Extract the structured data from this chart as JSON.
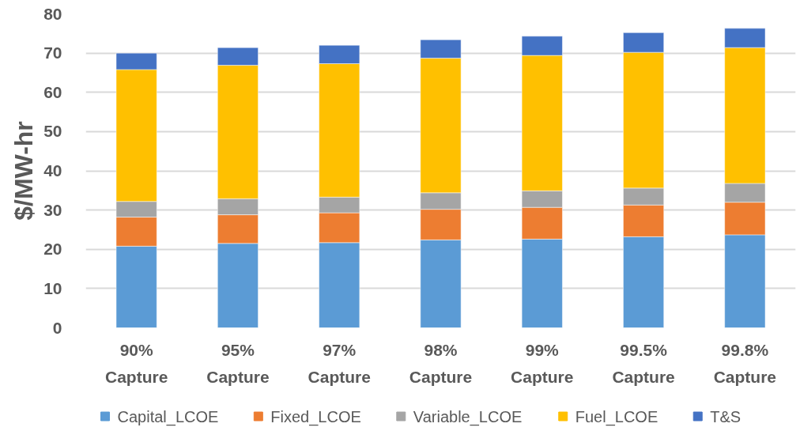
{
  "chart_data": {
    "type": "bar",
    "stacked": true,
    "ylabel": "$/MW-hr",
    "categories": [
      "90% Capture",
      "95% Capture",
      "97% Capture",
      "98% Capture",
      "99% Capture",
      "99.5% Capture",
      "99.8% Capture"
    ],
    "series": [
      {
        "name": "Capital_LCOE",
        "color": "#5b9bd5",
        "values": [
          20.8,
          21.5,
          21.7,
          22.4,
          22.6,
          23.2,
          23.7
        ]
      },
      {
        "name": "Fixed_LCOE",
        "color": "#ed7d31",
        "values": [
          7.4,
          7.3,
          7.6,
          7.8,
          8.1,
          8.1,
          8.3
        ]
      },
      {
        "name": "Variable_LCOE",
        "color": "#a5a5a5",
        "values": [
          4.0,
          4.1,
          4.0,
          4.2,
          4.2,
          4.3,
          4.8
        ]
      },
      {
        "name": "Fuel_LCOE",
        "color": "#ffc000",
        "values": [
          33.6,
          34.0,
          34.0,
          34.3,
          34.5,
          34.6,
          34.6
        ]
      },
      {
        "name": "T&S",
        "color": "#4472c4",
        "values": [
          4.2,
          4.5,
          4.7,
          4.7,
          4.9,
          5.0,
          4.9
        ]
      }
    ],
    "ylim": [
      0,
      80
    ],
    "yticks": [
      0,
      10,
      20,
      30,
      40,
      50,
      60,
      70,
      80
    ],
    "grid": "y",
    "legend": "bottom"
  }
}
